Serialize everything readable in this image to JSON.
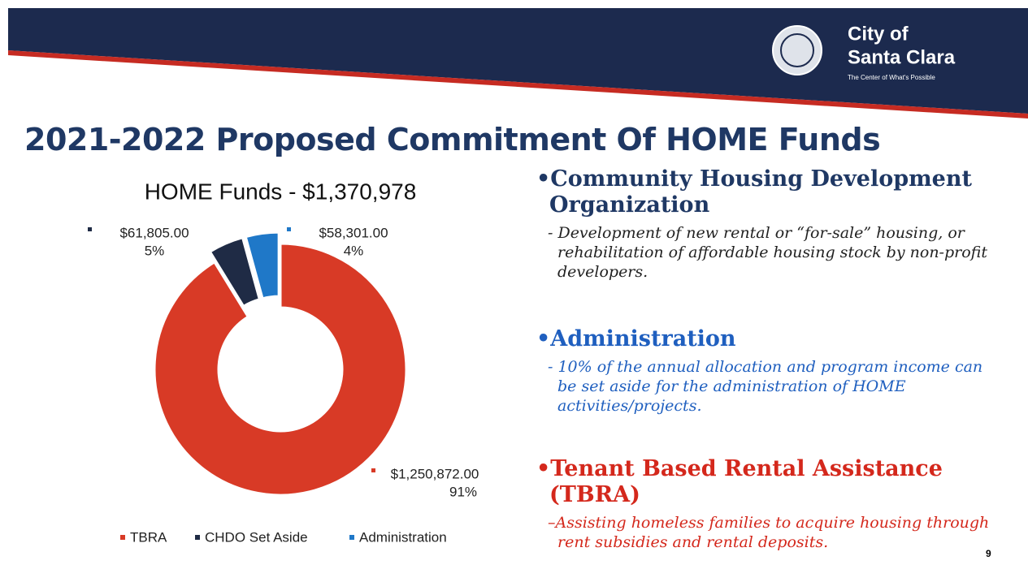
{
  "header": {
    "logo_line1": "City of",
    "logo_line2": "Santa Clara",
    "tagline": "The Center of What's Possible"
  },
  "title": "2021-2022 Proposed Commitment Of HOME Funds",
  "chart_data": {
    "type": "pie",
    "title": "HOME Funds - $1,370,978",
    "categories": [
      "TBRA",
      "CHDO Set Aside",
      "Administration"
    ],
    "values": [
      1250872,
      61805,
      58301
    ],
    "value_labels": [
      "$1,250,872.00",
      "$61,805.00",
      "$58,301.00"
    ],
    "percents": [
      91,
      5,
      4
    ],
    "percent_labels": [
      "91%",
      "5%",
      "4%"
    ],
    "colors": [
      "#d83a26",
      "#1f2b45",
      "#1f78c8"
    ],
    "donut": true,
    "legend": "bottom"
  },
  "sections": [
    {
      "heading": "Community Housing Development Organization",
      "text": "- Development of new rental or “for-sale” housing, or rehabilitation of affordable housing stock by non-profit developers."
    },
    {
      "heading": "Administration",
      "text": "- 10% of the annual allocation and program income can be set aside for the administration of HOME activities/projects."
    },
    {
      "heading": "Tenant Based Rental Assistance (TBRA)",
      "text": "–Assisting homeless families to acquire housing through rent subsidies and rental deposits."
    }
  ],
  "page_number": "9"
}
